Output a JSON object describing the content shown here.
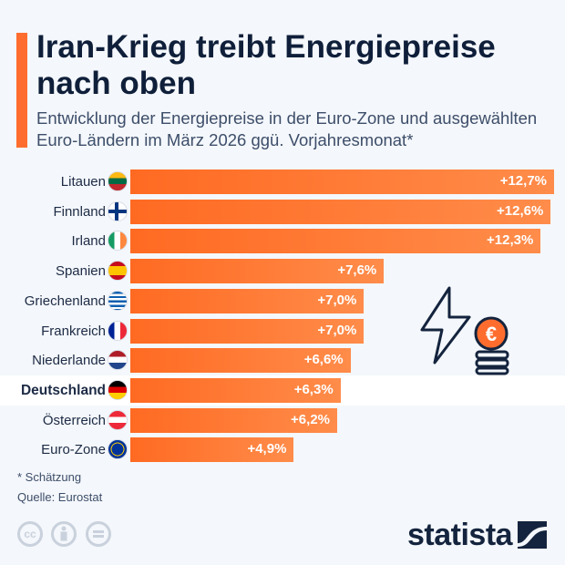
{
  "header": {
    "title": "Iran-Krieg treibt Energiepreise nach oben",
    "subtitle": "Entwicklung der Energiepreise in der Euro-Zone und ausgewählten Euro-Ländern im März 2026 ggü. Vorjahresmonat*"
  },
  "colors": {
    "accent": "#ff6d2e",
    "bar": "#ff7a32",
    "highlight_row": "#ffffff",
    "logo": "#14243e"
  },
  "chart_data": {
    "type": "bar",
    "orientation": "horizontal",
    "title": "Iran-Krieg treibt Energiepreise nach oben",
    "categories": [
      "Litauen",
      "Finnland",
      "Irland",
      "Spanien",
      "Griechenland",
      "Frankreich",
      "Niederlande",
      "Deutschland",
      "Österreich",
      "Euro-Zone"
    ],
    "values": [
      12.7,
      12.6,
      12.3,
      7.6,
      7.0,
      7.0,
      6.6,
      6.3,
      6.2,
      4.9
    ],
    "labels": [
      "+12,7%",
      "+12,6%",
      "+12,3%",
      "+7,6%",
      "+7,0%",
      "+7,0%",
      "+6,6%",
      "+6,3%",
      "+6,2%",
      "+4,9%"
    ],
    "highlighted": "Deutschland",
    "unit": "%",
    "grid": false,
    "xlim": [
      0,
      12.7
    ]
  },
  "footer": {
    "note": "* Schätzung",
    "source": "Quelle: Eurostat",
    "brand": "statista",
    "license_icons": [
      "cc-icon",
      "by-icon",
      "nd-icon"
    ],
    "cc_text": "cc"
  }
}
